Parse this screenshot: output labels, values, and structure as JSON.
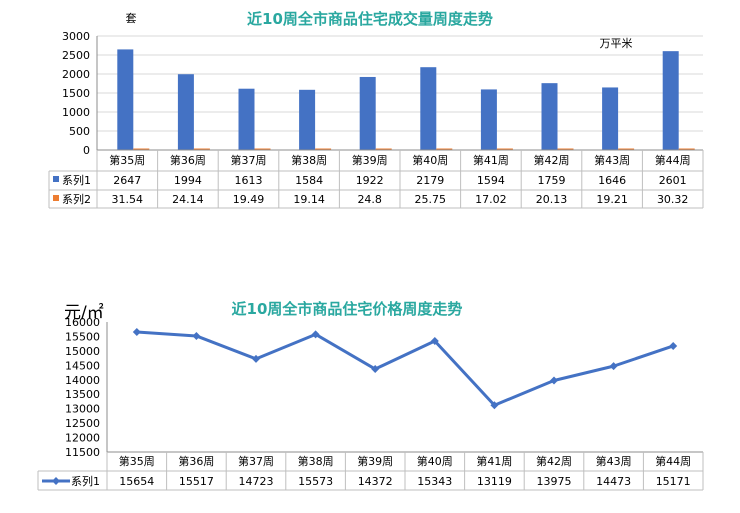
{
  "chart_data": [
    {
      "type": "bar",
      "title": "近10周全市商品住宅成交量周度走势",
      "y_unit_left": "套",
      "y_unit_right": "万平米",
      "categories": [
        "第35周",
        "第36周",
        "第37周",
        "第38周",
        "第39周",
        "第40周",
        "第41周",
        "第42周",
        "第43周",
        "第44周"
      ],
      "ylim": [
        0,
        3000
      ],
      "yticks": [
        0,
        500,
        1000,
        1500,
        2000,
        2500,
        3000
      ],
      "series": [
        {
          "name": "系列1",
          "color": "#4472c4",
          "values": [
            2647,
            1994,
            1613,
            1584,
            1922,
            2179,
            1594,
            1759,
            1646,
            2601
          ],
          "labels": [
            "2647",
            "1994",
            "1613",
            "1584",
            "1922",
            "2179",
            "1594",
            "1759",
            "1646",
            "2601"
          ]
        },
        {
          "name": "系列2",
          "color": "#ed7d31",
          "values": [
            31.54,
            24.14,
            19.49,
            19.14,
            24.8,
            25.75,
            17.02,
            20.13,
            19.21,
            30.32
          ],
          "labels": [
            "31.54",
            "24.14",
            "19.49",
            "19.14",
            "24.8",
            "25.75",
            "17.02",
            "20.13",
            "19.21",
            "30.32"
          ]
        }
      ],
      "legend": "data-table"
    },
    {
      "type": "line",
      "title": "近10周全市商品住宅价格周度走势",
      "y_unit": "元/㎡",
      "categories": [
        "第35周",
        "第36周",
        "第37周",
        "第38周",
        "第39周",
        "第40周",
        "第41周",
        "第42周",
        "第43周",
        "第44周"
      ],
      "ylim": [
        11500,
        16000
      ],
      "yticks": [
        11500,
        12000,
        12500,
        13000,
        13500,
        14000,
        14500,
        15000,
        15500,
        16000
      ],
      "series": [
        {
          "name": "系列1",
          "color": "#4472c4",
          "values": [
            15654,
            15517,
            14723,
            15573,
            14372,
            15343,
            13119,
            13975,
            14473,
            15171
          ],
          "labels": [
            "15654",
            "15517",
            "14723",
            "15573",
            "14372",
            "15343",
            "13119",
            "13975",
            "14473",
            "15171"
          ]
        }
      ],
      "legend": "data-table"
    }
  ]
}
